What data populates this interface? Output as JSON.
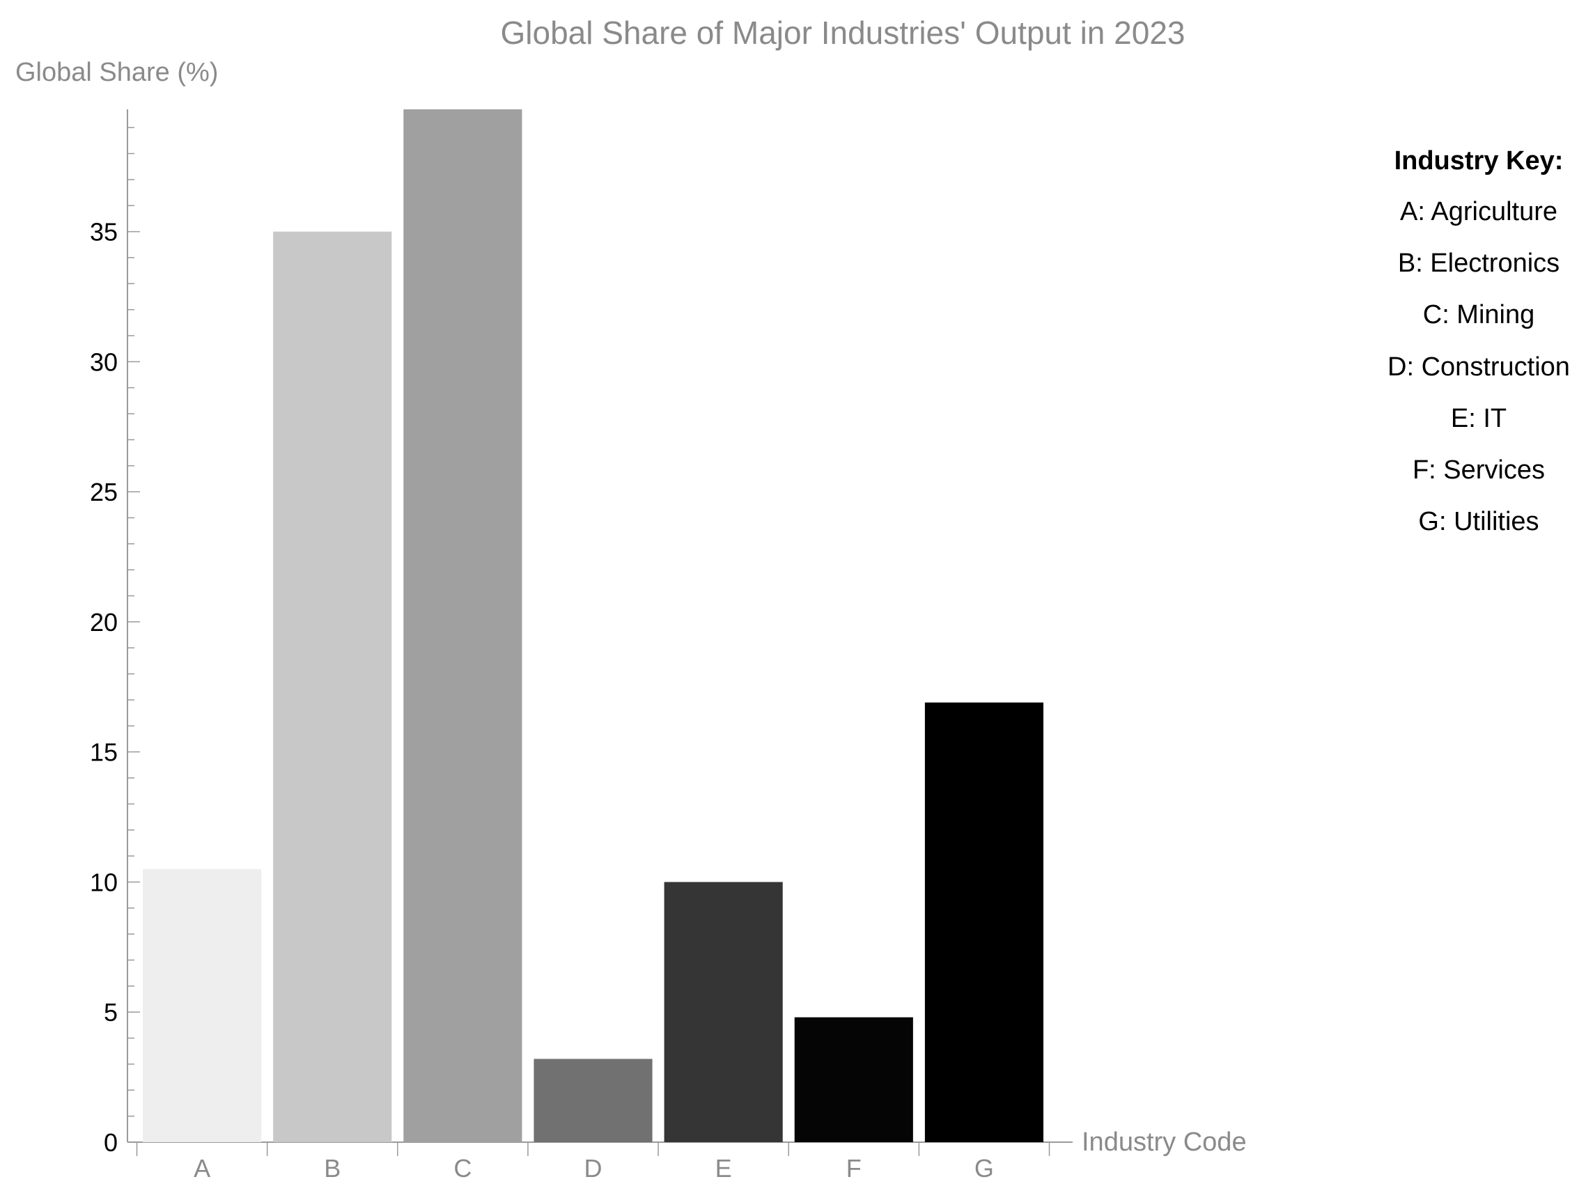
{
  "chart_data": {
    "type": "bar",
    "title": "Global Share of Major Industries' Output in 2023",
    "ylabel": "Global Share (%)",
    "xlabel": "Industry Code",
    "categories": [
      "A",
      "B",
      "C",
      "D",
      "E",
      "F",
      "G"
    ],
    "values": [
      10.5,
      35,
      39.7,
      3.2,
      10,
      4.8,
      16.9
    ],
    "colors": [
      "#eeeeee",
      "#c8c8c8",
      "#a0a0a0",
      "#717171",
      "#353535",
      "#050505",
      "#000000"
    ],
    "ylim": [
      0,
      39.7
    ],
    "yticks": [
      0,
      5,
      10,
      15,
      20,
      25,
      30,
      35
    ],
    "grid": false,
    "legend": {
      "title": "Industry Key:",
      "placement": "right",
      "entries": [
        "A: Agriculture",
        "B: Electronics",
        "C: Mining",
        "D: Construction",
        "E: IT",
        "F: Services",
        "G: Utilities"
      ]
    }
  }
}
